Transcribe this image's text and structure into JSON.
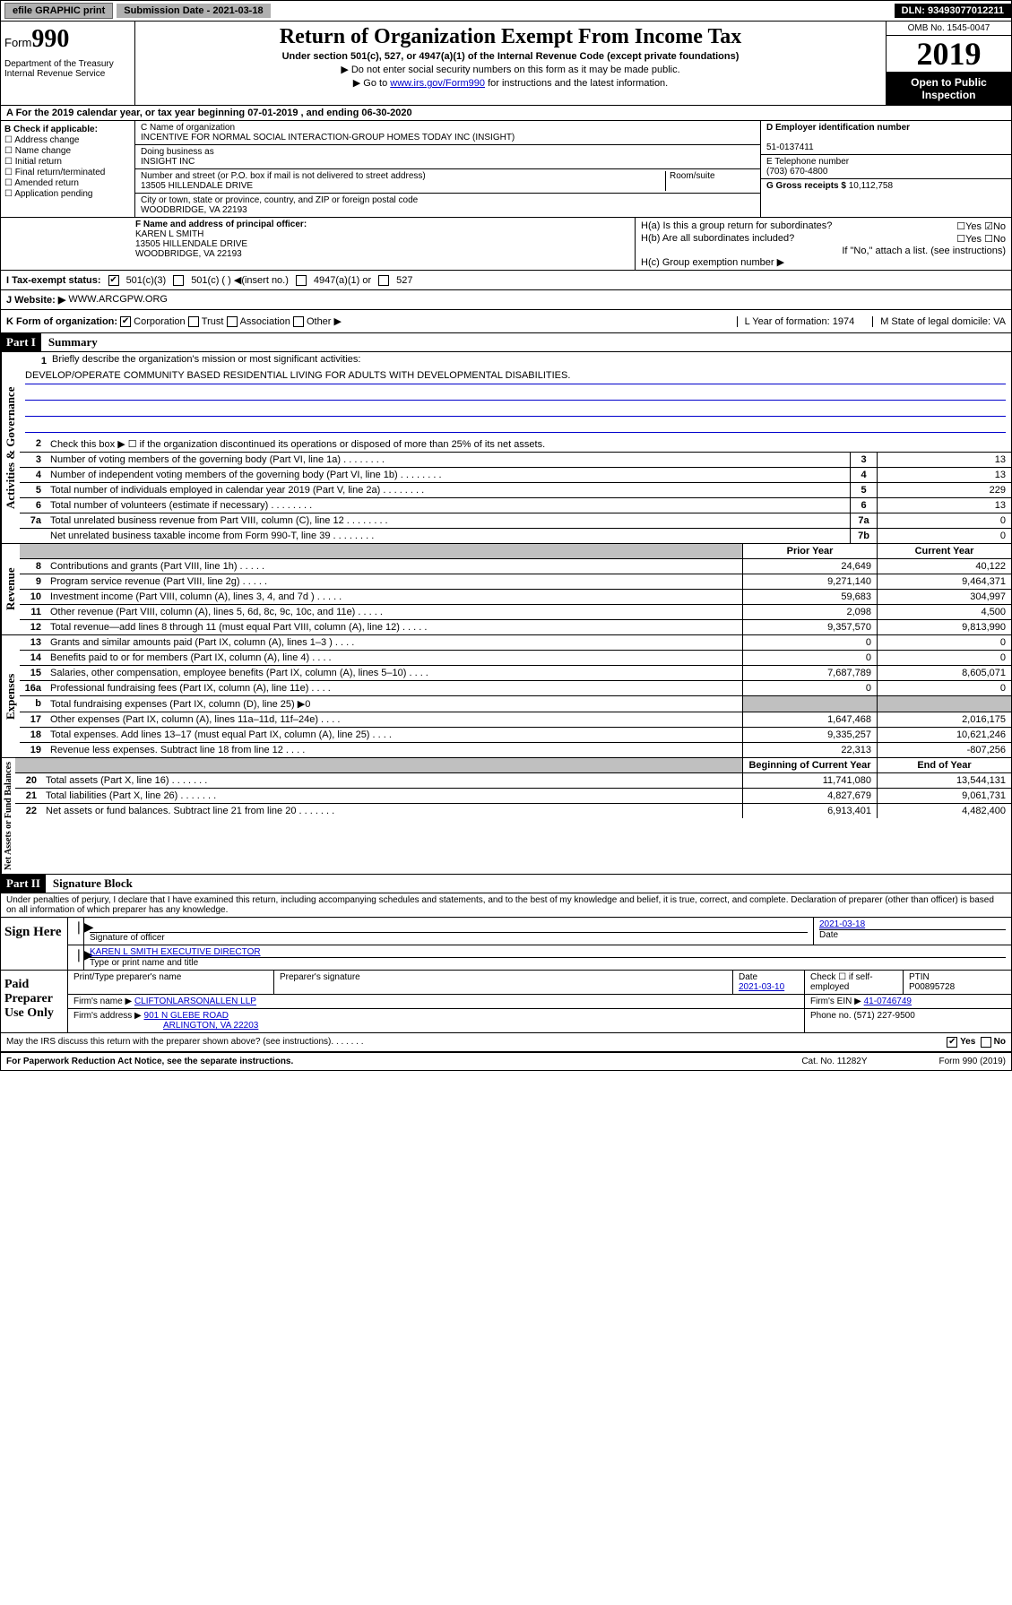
{
  "topbar": {
    "efile": "efile GRAPHIC print",
    "submission_label": "Submission Date - 2021-03-18",
    "dln": "DLN: 93493077012211"
  },
  "header": {
    "form_prefix": "Form",
    "form_num": "990",
    "dept": "Department of the Treasury Internal Revenue Service",
    "title": "Return of Organization Exempt From Income Tax",
    "subtitle": "Under section 501(c), 527, or 4947(a)(1) of the Internal Revenue Code (except private foundations)",
    "note1": "▶ Do not enter social security numbers on this form as it may be made public.",
    "note2_pre": "▶ Go to ",
    "note2_link": "www.irs.gov/Form990",
    "note2_post": " for instructions and the latest information.",
    "omb": "OMB No. 1545-0047",
    "year": "2019",
    "open": "Open to Public Inspection"
  },
  "line_a": "A For the 2019 calendar year, or tax year beginning 07-01-2019    , and ending 06-30-2020",
  "box_b": {
    "label": "B Check if applicable:",
    "opts": [
      "Address change",
      "Name change",
      "Initial return",
      "Final return/terminated",
      "Amended return",
      "Application pending"
    ]
  },
  "box_c": {
    "name_label": "C Name of organization",
    "name": "INCENTIVE FOR NORMAL SOCIAL INTERACTION-GROUP HOMES TODAY INC (INSIGHT)",
    "dba_label": "Doing business as",
    "dba": "INSIGHT INC",
    "addr_label": "Number and street (or P.O. box if mail is not delivered to street address)",
    "room_label": "Room/suite",
    "addr": "13505 HILLENDALE DRIVE",
    "city_label": "City or town, state or province, country, and ZIP or foreign postal code",
    "city": "WOODBRIDGE, VA  22193"
  },
  "box_d": {
    "label": "D Employer identification number",
    "val": "51-0137411"
  },
  "box_e": {
    "label": "E Telephone number",
    "val": "(703) 670-4800"
  },
  "box_g": {
    "label": "G Gross receipts $",
    "val": "10,112,758"
  },
  "box_f": {
    "label": "F  Name and address of principal officer:",
    "name": "KAREN L SMITH",
    "addr1": "13505 HILLENDALE DRIVE",
    "addr2": "WOODBRIDGE, VA  22193"
  },
  "box_h": {
    "a": "H(a)  Is this a group return for subordinates?",
    "b": "H(b)  Are all subordinates included?",
    "b_note": "If \"No,\" attach a list. (see instructions)",
    "c": "H(c)  Group exemption number ▶"
  },
  "row_i": {
    "label": "I    Tax-exempt status:",
    "opt1": "501(c)(3)",
    "opt2": "501(c) (  ) ◀(insert no.)",
    "opt3": "4947(a)(1) or",
    "opt4": "527"
  },
  "row_j": {
    "label": "J   Website: ▶",
    "val": "WWW.ARCGPW.ORG"
  },
  "row_k": {
    "label": "K Form of organization:",
    "opts": [
      "Corporation",
      "Trust",
      "Association",
      "Other ▶"
    ],
    "l": "L Year of formation: 1974",
    "m": "M State of legal domicile: VA"
  },
  "part1": {
    "num": "Part I",
    "title": "Summary"
  },
  "tabs": {
    "gov": "Activities & Governance",
    "rev": "Revenue",
    "exp": "Expenses",
    "net": "Net Assets or Fund Balances"
  },
  "summary": {
    "l1_label": "Briefly describe the organization's mission or most significant activities:",
    "l1_val": "DEVELOP/OPERATE COMMUNITY BASED RESIDENTIAL LIVING FOR ADULTS WITH DEVELOPMENTAL DISABILITIES.",
    "l2": "Check this box ▶ ☐  if the organization discontinued its operations or disposed of more than 25% of its net assets.",
    "headers": {
      "prior": "Prior Year",
      "current": "Current Year",
      "begin": "Beginning of Current Year",
      "end": "End of Year"
    },
    "rows": [
      {
        "n": "3",
        "t": "Number of voting members of the governing body (Part VI, line 1a)",
        "box": "3",
        "v2": "13"
      },
      {
        "n": "4",
        "t": "Number of independent voting members of the governing body (Part VI, line 1b)",
        "box": "4",
        "v2": "13"
      },
      {
        "n": "5",
        "t": "Total number of individuals employed in calendar year 2019 (Part V, line 2a)",
        "box": "5",
        "v2": "229"
      },
      {
        "n": "6",
        "t": "Total number of volunteers (estimate if necessary)",
        "box": "6",
        "v2": "13"
      },
      {
        "n": "7a",
        "t": "Total unrelated business revenue from Part VIII, column (C), line 12",
        "box": "7a",
        "v2": "0"
      },
      {
        "n": "",
        "t": "Net unrelated business taxable income from Form 990-T, line 39",
        "box": "7b",
        "v2": "0"
      }
    ],
    "rev": [
      {
        "n": "8",
        "t": "Contributions and grants (Part VIII, line 1h)",
        "v1": "24,649",
        "v2": "40,122"
      },
      {
        "n": "9",
        "t": "Program service revenue (Part VIII, line 2g)",
        "v1": "9,271,140",
        "v2": "9,464,371"
      },
      {
        "n": "10",
        "t": "Investment income (Part VIII, column (A), lines 3, 4, and 7d )",
        "v1": "59,683",
        "v2": "304,997"
      },
      {
        "n": "11",
        "t": "Other revenue (Part VIII, column (A), lines 5, 6d, 8c, 9c, 10c, and 11e)",
        "v1": "2,098",
        "v2": "4,500"
      },
      {
        "n": "12",
        "t": "Total revenue—add lines 8 through 11 (must equal Part VIII, column (A), line 12)",
        "v1": "9,357,570",
        "v2": "9,813,990"
      }
    ],
    "exp": [
      {
        "n": "13",
        "t": "Grants and similar amounts paid (Part IX, column (A), lines 1–3 )",
        "v1": "0",
        "v2": "0"
      },
      {
        "n": "14",
        "t": "Benefits paid to or for members (Part IX, column (A), line 4)",
        "v1": "0",
        "v2": "0"
      },
      {
        "n": "15",
        "t": "Salaries, other compensation, employee benefits (Part IX, column (A), lines 5–10)",
        "v1": "7,687,789",
        "v2": "8,605,071"
      },
      {
        "n": "16a",
        "t": "Professional fundraising fees (Part IX, column (A), line 11e)",
        "v1": "0",
        "v2": "0"
      },
      {
        "n": "b",
        "t": "Total fundraising expenses (Part IX, column (D), line 25) ▶0",
        "grey": true
      },
      {
        "n": "17",
        "t": "Other expenses (Part IX, column (A), lines 11a–11d, 11f–24e)",
        "v1": "1,647,468",
        "v2": "2,016,175"
      },
      {
        "n": "18",
        "t": "Total expenses. Add lines 13–17 (must equal Part IX, column (A), line 25)",
        "v1": "9,335,257",
        "v2": "10,621,246"
      },
      {
        "n": "19",
        "t": "Revenue less expenses. Subtract line 18 from line 12",
        "v1": "22,313",
        "v2": "-807,256"
      }
    ],
    "net": [
      {
        "n": "20",
        "t": "Total assets (Part X, line 16)",
        "v1": "11,741,080",
        "v2": "13,544,131"
      },
      {
        "n": "21",
        "t": "Total liabilities (Part X, line 26)",
        "v1": "4,827,679",
        "v2": "9,061,731"
      },
      {
        "n": "22",
        "t": "Net assets or fund balances. Subtract line 21 from line 20",
        "v1": "6,913,401",
        "v2": "4,482,400"
      }
    ]
  },
  "part2": {
    "num": "Part II",
    "title": "Signature Block"
  },
  "sig": {
    "decl": "Under penalties of perjury, I declare that I have examined this return, including accompanying schedules and statements, and to the best of my knowledge and belief, it is true, correct, and complete. Declaration of preparer (other than officer) is based on all information of which preparer has any knowledge.",
    "sign_here": "Sign Here",
    "sig_officer": "Signature of officer",
    "date": "2021-03-18",
    "date_label": "Date",
    "officer_name": "KAREN L SMITH  EXECUTIVE DIRECTOR",
    "type_label": "Type or print name and title",
    "paid": "Paid Preparer Use Only",
    "prep_name_label": "Print/Type preparer's name",
    "prep_sig_label": "Preparer's signature",
    "prep_date_label": "Date",
    "prep_date": "2021-03-10",
    "check_label": "Check ☐ if self-employed",
    "ptin_label": "PTIN",
    "ptin": "P00895728",
    "firm_name_label": "Firm's name    ▶",
    "firm_name": "CLIFTONLARSONALLEN LLP",
    "firm_ein_label": "Firm's EIN ▶",
    "firm_ein": "41-0746749",
    "firm_addr_label": "Firm's address ▶",
    "firm_addr1": "901 N GLEBE ROAD",
    "firm_addr2": "ARLINGTON, VA  22203",
    "phone_label": "Phone no.",
    "phone": "(571) 227-9500"
  },
  "discuss": "May the IRS discuss this return with the preparer shown above? (see instructions)",
  "footer": {
    "left": "For Paperwork Reduction Act Notice, see the separate instructions.",
    "mid": "Cat. No. 11282Y",
    "right": "Form 990 (2019)"
  },
  "yes": "Yes",
  "no": "No"
}
